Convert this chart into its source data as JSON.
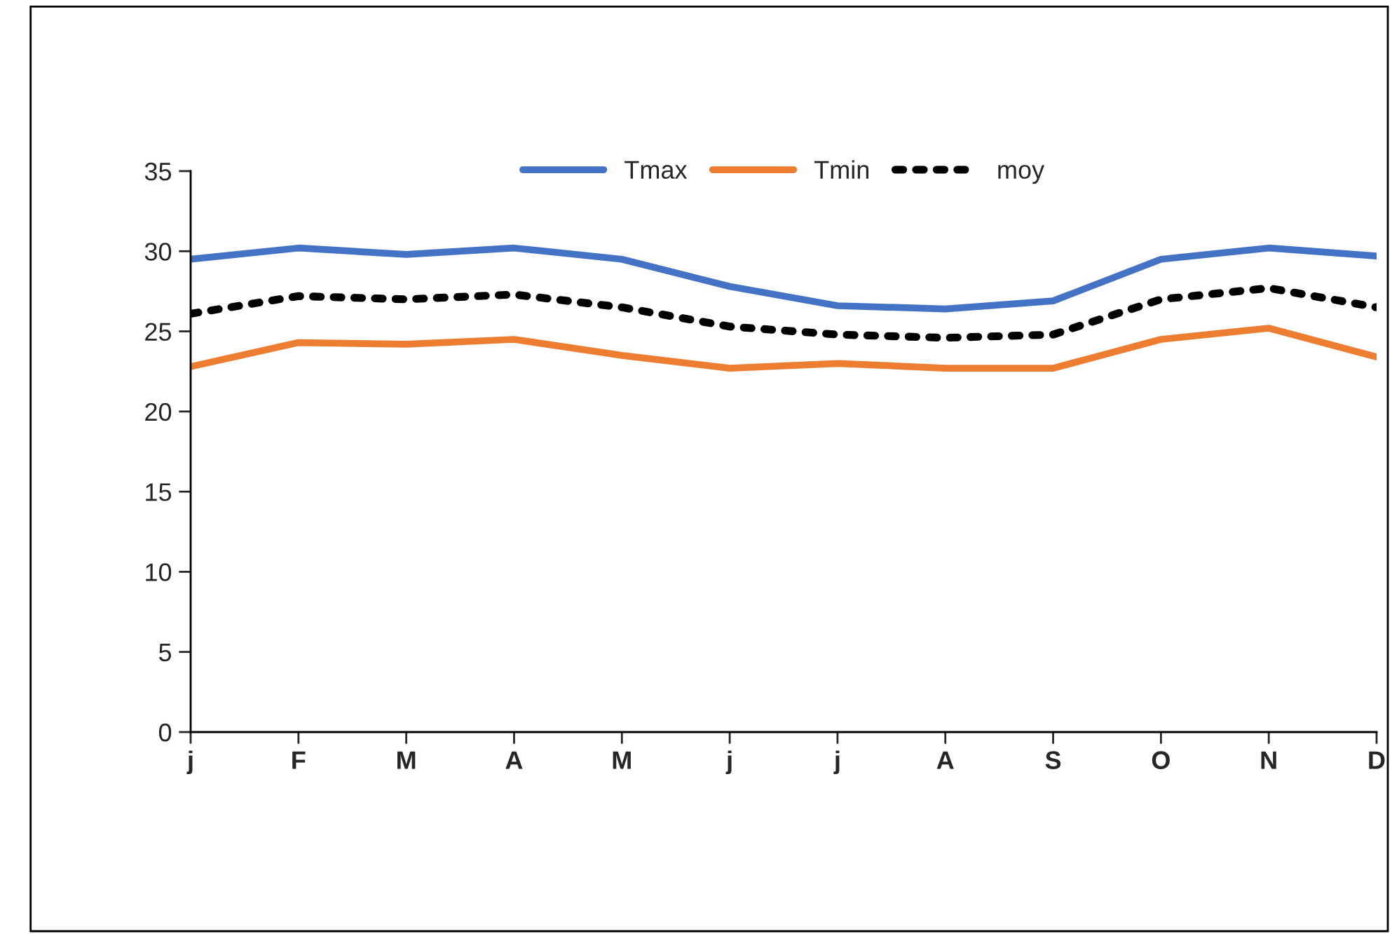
{
  "chart_data": {
    "type": "line",
    "categories": [
      "j",
      "F",
      "M",
      "A",
      "M",
      "j",
      "j",
      "A",
      "S",
      "O",
      "N",
      "D"
    ],
    "series": [
      {
        "name": "Tmax",
        "color": "#4472c4",
        "line_style": "solid",
        "values": [
          29.5,
          30.2,
          29.8,
          30.2,
          29.5,
          27.8,
          26.6,
          26.4,
          26.9,
          29.5,
          30.2,
          29.7
        ]
      },
      {
        "name": "Tmin",
        "color": "#ed7d31",
        "line_style": "solid",
        "values": [
          22.8,
          24.3,
          24.2,
          24.5,
          23.5,
          22.7,
          23.0,
          22.7,
          22.7,
          24.5,
          25.2,
          23.4
        ]
      },
      {
        "name": "moy",
        "color": "#000000",
        "line_style": "dotted",
        "values": [
          26.1,
          27.2,
          27.0,
          27.3,
          26.5,
          25.3,
          24.8,
          24.6,
          24.8,
          27.0,
          27.7,
          26.5
        ]
      }
    ],
    "ylim": [
      0,
      35
    ],
    "yticks": [
      0,
      5,
      10,
      15,
      20,
      25,
      30,
      35
    ],
    "grid": false,
    "legend": "top",
    "marker": "none"
  }
}
